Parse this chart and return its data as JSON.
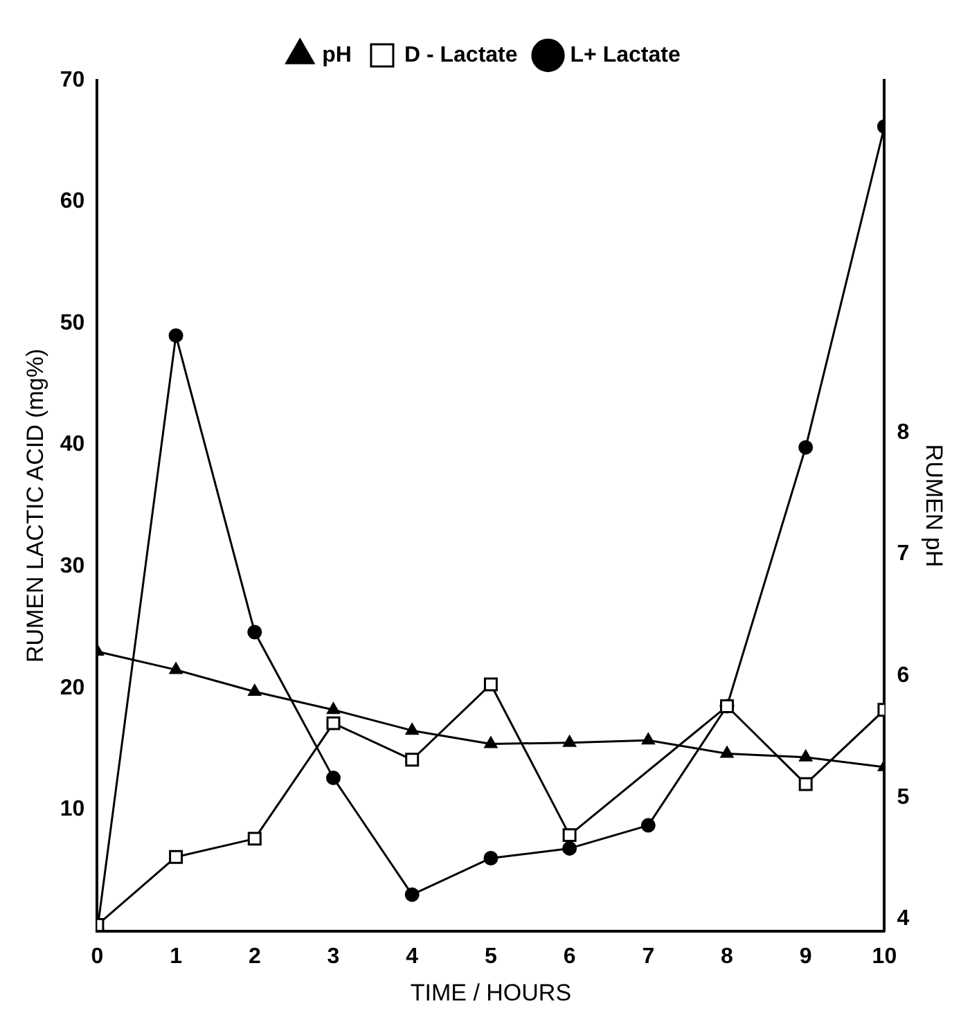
{
  "chart_data": {
    "type": "line",
    "xlabel": "TIME / HOURS",
    "ylabel": "RUMEN LACTIC ACID (mg%)",
    "y2label": "RUMEN pH",
    "x": [
      0,
      1,
      2,
      3,
      4,
      5,
      6,
      7,
      8,
      9,
      10
    ],
    "series": [
      {
        "name": "L+ Lactate",
        "color": "#000000",
        "marker": "circle",
        "values": [
          0,
          49,
          24.6,
          12.6,
          3,
          6,
          6.8,
          8.7,
          18.5,
          39.8,
          66.2
        ]
      },
      {
        "name": "D - Lactate",
        "color": "#000000",
        "marker": "square",
        "values": [
          0.5,
          6.1,
          7.6,
          17.1,
          14.1,
          20.3,
          7.9,
          null,
          18.5,
          12.1,
          18.2
        ]
      },
      {
        "name": "pH",
        "color": "#000000",
        "marker": "triangle",
        "axis": "y2",
        "values": [
          6.2,
          6.05,
          5.87,
          5.72,
          5.55,
          5.44,
          5.45,
          5.47,
          5.36,
          5.33,
          5.25
        ]
      }
    ],
    "xlim": [
      0,
      10
    ],
    "xticks": [
      0,
      1,
      2,
      3,
      4,
      5,
      6,
      7,
      8,
      9,
      10
    ],
    "ylim": [
      0,
      70
    ],
    "yticks": [
      10,
      20,
      30,
      40,
      50,
      60,
      70
    ],
    "y2lim": [
      3.9,
      10.9
    ],
    "y2ticks": [
      4,
      5,
      6,
      7,
      8
    ],
    "grid": false,
    "legend": "top",
    "line_style": "solid"
  }
}
